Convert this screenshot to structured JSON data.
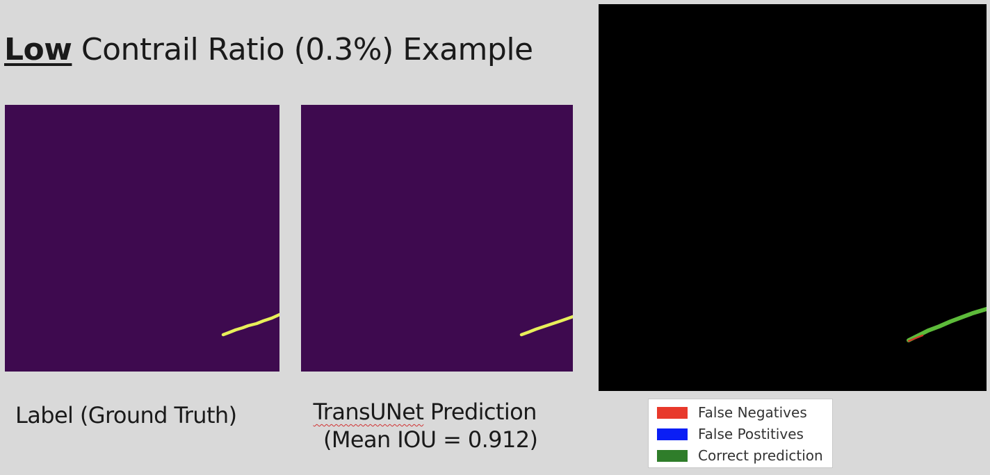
{
  "title": {
    "emphasis": "Low",
    "rest": " Contrail Ratio (0.3%) Example"
  },
  "panels": {
    "label": {
      "background": "#3e0a4f",
      "contrail_color": "#e8ef5a"
    },
    "prediction": {
      "background": "#3e0a4f",
      "contrail_color": "#e8ef5a"
    },
    "error_map": {
      "background": "#000000",
      "correct_color": "#5dbb3a",
      "false_negative_color": "#d03a2a"
    }
  },
  "captions": {
    "label": "Label (Ground Truth)",
    "prediction_model": "TransUNet",
    "prediction_rest": " Prediction",
    "prediction_metric": "(Mean IOU = 0.912)"
  },
  "legend": {
    "items": [
      {
        "label": "False Negatives",
        "color": "#e8392b"
      },
      {
        "label": "False Postitives",
        "color": "#0a1ef5"
      },
      {
        "label": "Correct prediction",
        "color": "#2f7d2a"
      }
    ]
  }
}
